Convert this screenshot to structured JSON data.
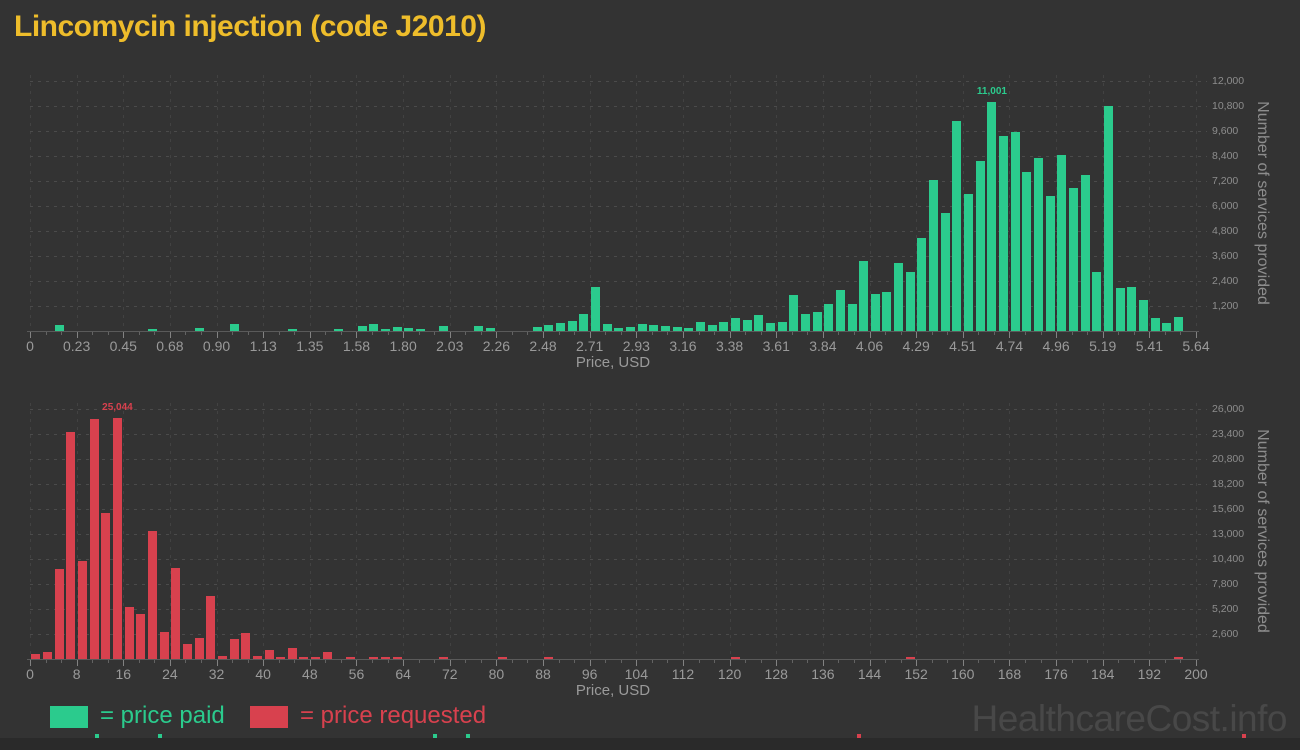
{
  "title": "Lincomycin injection (code J2010)",
  "watermark": "HealthcareCost.info",
  "legend": {
    "paid_label": "= price paid",
    "requested_label": "= price requested"
  },
  "colors": {
    "background": "#333333",
    "price_paid": "#2bcb8d",
    "price_requested": "#d8414e",
    "title": "#eebd2b",
    "axis_text": "#9a9a9a",
    "grid": "#4a4a4a",
    "watermark": "#484848"
  },
  "chart_data": [
    {
      "type": "bar",
      "name": "price paid histogram",
      "color": "#2bcb8d",
      "xlabel": "Price, USD",
      "ylabel": "Number of services provided",
      "x_start": 0,
      "x_end": 5.64,
      "bin_count": 100,
      "bin_width": 0.0564,
      "ylim": [
        0,
        12000
      ],
      "grid": true,
      "x_tick_labels": [
        "0",
        "0.23",
        "0.45",
        "0.68",
        "0.90",
        "1.13",
        "1.35",
        "1.58",
        "1.80",
        "2.03",
        "2.26",
        "2.48",
        "2.71",
        "2.93",
        "3.16",
        "3.38",
        "3.61",
        "3.84",
        "4.06",
        "4.29",
        "4.51",
        "4.74",
        "4.96",
        "5.19",
        "5.41",
        "5.64"
      ],
      "y_tick_labels": [
        "1,200",
        "2,400",
        "3,600",
        "4,800",
        "6,000",
        "7,200",
        "8,400",
        "9,600",
        "10,800",
        "12,000"
      ],
      "annotation": {
        "text": "11,001",
        "bin": 82
      },
      "values": [
        0,
        0,
        280,
        0,
        0,
        0,
        0,
        0,
        0,
        0,
        80,
        0,
        0,
        0,
        160,
        0,
        0,
        320,
        0,
        0,
        0,
        0,
        110,
        0,
        0,
        0,
        80,
        0,
        230,
        320,
        80,
        190,
        130,
        70,
        0,
        240,
        0,
        0,
        240,
        130,
        0,
        0,
        0,
        190,
        290,
        400,
        480,
        830,
        2100,
        350,
        160,
        190,
        350,
        290,
        240,
        190,
        160,
        430,
        270,
        430,
        640,
        510,
        765,
        400,
        430,
        1720,
        830,
        900,
        1320,
        1990,
        1275,
        3375,
        1800,
        1880,
        3265,
        2815,
        4485,
        7270,
        5650,
        10100,
        6570,
        8150,
        11001,
        9380,
        9570,
        7630,
        8320,
        6470,
        8430,
        6870,
        7475,
        2815,
        10815,
        2070,
        2120,
        1480,
        640,
        370,
        670,
        0
      ]
    },
    {
      "type": "bar",
      "name": "price requested histogram",
      "color": "#d8414e",
      "xlabel": "Price, USD",
      "ylabel": "Number of services provided",
      "x_start": 0,
      "x_end": 200,
      "bin_count": 100,
      "bin_width": 2,
      "ylim": [
        0,
        26000
      ],
      "grid": true,
      "x_tick_labels": [
        "0",
        "8",
        "16",
        "24",
        "32",
        "40",
        "48",
        "56",
        "64",
        "72",
        "80",
        "88",
        "96",
        "104",
        "112",
        "120",
        "128",
        "136",
        "144",
        "152",
        "160",
        "168",
        "176",
        "184",
        "192",
        "200"
      ],
      "y_tick_labels": [
        "2,600",
        "5,200",
        "7,800",
        "10,400",
        "13,000",
        "15,600",
        "18,200",
        "20,800",
        "23,400",
        "26,000"
      ],
      "annotation": {
        "text": "25,044",
        "bin": 7
      },
      "values": [
        500,
        700,
        9360,
        23640,
        10220,
        24930,
        15215,
        25044,
        5440,
        4650,
        13340,
        2840,
        9500,
        1530,
        2215,
        6580,
        350,
        2110,
        2735,
        310,
        970,
        100,
        1145,
        50,
        30,
        700,
        0,
        170,
        0,
        120,
        200,
        200,
        0,
        0,
        0,
        230,
        0,
        0,
        0,
        0,
        150,
        0,
        0,
        0,
        170,
        0,
        0,
        0,
        0,
        0,
        0,
        0,
        0,
        0,
        0,
        0,
        0,
        0,
        0,
        0,
        230,
        0,
        0,
        0,
        0,
        0,
        0,
        0,
        0,
        0,
        0,
        0,
        0,
        0,
        0,
        120,
        0,
        0,
        0,
        0,
        0,
        0,
        0,
        0,
        0,
        0,
        0,
        0,
        0,
        0,
        0,
        0,
        0,
        0,
        0,
        0,
        0,
        0,
        170,
        0
      ]
    }
  ]
}
